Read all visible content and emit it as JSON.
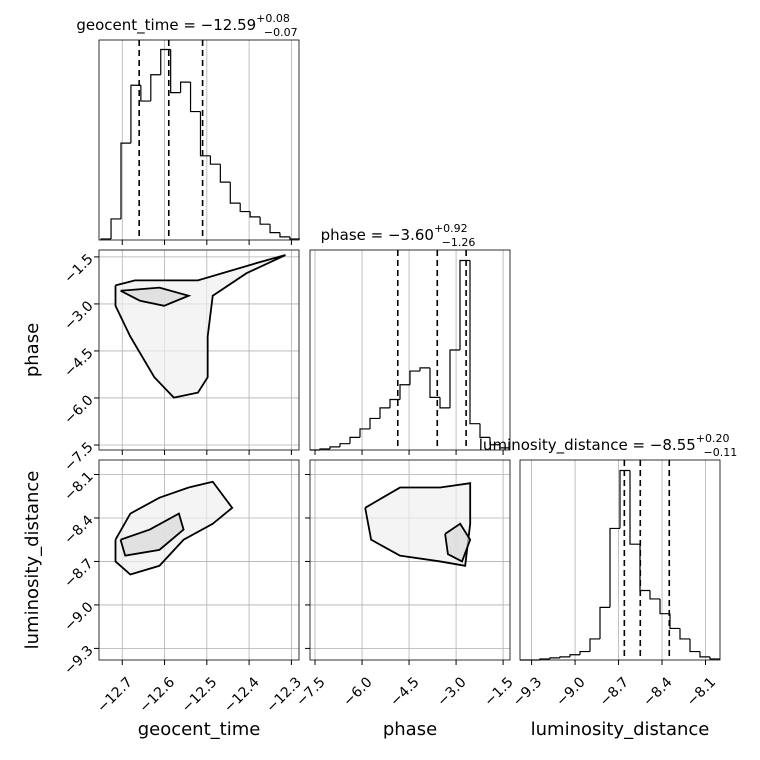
{
  "chart_data": {
    "type": "corner",
    "params": [
      {
        "label": "geocent_time",
        "lim": [
          -12.755,
          -12.282
        ],
        "ticks": [
          {
            "value": -12.7,
            "label": "−12.7"
          },
          {
            "value": -12.6,
            "label": "−12.6"
          },
          {
            "value": -12.5,
            "label": "−12.5"
          },
          {
            "value": -12.4,
            "label": "−12.4"
          },
          {
            "value": -12.3,
            "label": "−12.3"
          }
        ],
        "title": "geocent_time = −12.59",
        "upper": "+0.08",
        "lower": "−0.07",
        "quantiles": [
          -12.66,
          -12.59,
          -12.51
        ],
        "bins": [
          -12.75,
          -12.7265,
          -12.703,
          -12.6795,
          -12.656,
          -12.6325,
          -12.609,
          -12.5855,
          -12.562,
          -12.5385,
          -12.515,
          -12.4915,
          -12.468,
          -12.4445,
          -12.421,
          -12.3975,
          -12.374,
          -12.3505,
          -12.327,
          -12.3035,
          -12.28
        ],
        "counts": [
          1,
          20,
          92,
          147,
          132,
          157,
          181,
          140,
          150,
          122,
          80,
          72,
          55,
          35,
          27,
          22,
          15,
          7,
          3,
          1
        ],
        "count_lim": [
          0,
          190
        ]
      },
      {
        "label": "phase",
        "lim": [
          -7.66,
          -1.28
        ],
        "ticks": [
          {
            "value": -7.5,
            "label": "−7.5"
          },
          {
            "value": -6,
            "label": "−6.0"
          },
          {
            "value": -4.5,
            "label": "−4.5"
          },
          {
            "value": -3,
            "label": "−3.0"
          },
          {
            "value": -1.5,
            "label": "−1.5"
          }
        ],
        "title": "phase = −3.60",
        "upper": "+0.92",
        "lower": "−1.26",
        "quantiles": [
          -4.86,
          -3.6,
          -2.68
        ],
        "bins": [
          -7.66,
          -7.341,
          -7.022,
          -6.703,
          -6.384,
          -6.065,
          -5.746,
          -5.427,
          -5.108,
          -4.789,
          -4.47,
          -4.151,
          -3.832,
          -3.513,
          -3.194,
          -2.875,
          -2.556,
          -2.237,
          -1.918,
          -1.599,
          -1.28
        ],
        "counts": [
          0,
          1,
          3,
          6,
          12,
          20,
          30,
          40,
          48,
          62,
          75,
          78,
          50,
          40,
          95,
          180,
          25,
          12,
          5,
          2
        ],
        "count_lim": [
          0,
          190
        ]
      },
      {
        "label": "luminosity_distance",
        "lim": [
          -9.38,
          -8.0
        ],
        "ticks": [
          {
            "value": -9.3,
            "label": "−9.3"
          },
          {
            "value": -9,
            "label": "−9.0"
          },
          {
            "value": -8.7,
            "label": "−8.7"
          },
          {
            "value": -8.4,
            "label": "−8.4"
          },
          {
            "value": -8.1,
            "label": "−8.1"
          }
        ],
        "title": "luminosity_distance = −8.55",
        "upper": "+0.20",
        "lower": "−0.11",
        "quantiles": [
          -8.66,
          -8.55,
          -8.35
        ],
        "bins": [
          -9.38,
          -9.311,
          -9.242,
          -9.173,
          -9.104,
          -9.035,
          -8.966,
          -8.897,
          -8.828,
          -8.759,
          -8.69,
          -8.621,
          -8.552,
          -8.483,
          -8.414,
          -8.345,
          -8.276,
          -8.207,
          -8.138,
          -8.069,
          -8.0
        ],
        "counts": [
          0,
          0,
          1,
          2,
          3,
          5,
          8,
          20,
          50,
          125,
          180,
          110,
          66,
          58,
          44,
          30,
          20,
          8,
          3,
          1
        ],
        "count_lim": [
          0,
          190
        ]
      }
    ],
    "pairs": [
      {
        "xparam": 0,
        "yparam": 1,
        "contours": [
          {
            "x": [
              -12.716,
              -12.67,
              -12.521,
              -12.383,
              -12.314,
              -12.406,
              -12.486,
              -12.498,
              -12.498,
              -12.521,
              -12.578,
              -12.624,
              -12.681,
              -12.716,
              -12.716
            ],
            "y": [
              -2.41,
              -2.25,
              -2.25,
              -1.7,
              -1.44,
              -2.02,
              -2.74,
              -4.04,
              -5.34,
              -5.83,
              -5.99,
              -5.34,
              -4.04,
              -3.06,
              -2.41
            ]
          },
          {
            "x": [
              -12.704,
              -12.612,
              -12.543,
              -12.601,
              -12.658,
              -12.704
            ],
            "y": [
              -2.58,
              -2.48,
              -2.74,
              -3.06,
              -2.9,
              -2.58
            ]
          }
        ]
      },
      {
        "xparam": 0,
        "yparam": 2,
        "contours": [
          {
            "x": [
              -12.716,
              -12.681,
              -12.612,
              -12.543,
              -12.486,
              -12.44,
              -12.486,
              -12.555,
              -12.612,
              -12.681,
              -12.716,
              -12.716
            ],
            "y": [
              -8.55,
              -8.37,
              -8.26,
              -8.19,
              -8.15,
              -8.33,
              -8.44,
              -8.55,
              -8.73,
              -8.79,
              -8.7,
              -8.55
            ]
          },
          {
            "x": [
              -12.704,
              -12.635,
              -12.566,
              -12.555,
              -12.612,
              -12.693,
              -12.704
            ],
            "y": [
              -8.55,
              -8.48,
              -8.37,
              -8.48,
              -8.62,
              -8.66,
              -8.55
            ]
          }
        ]
      },
      {
        "xparam": 1,
        "yparam": 2,
        "contours": [
          {
            "x": [
              -5.9,
              -4.79,
              -3.51,
              -2.55,
              -2.55,
              -2.71,
              -3.51,
              -4.79,
              -5.71,
              -5.9
            ],
            "y": [
              -8.33,
              -8.19,
              -8.19,
              -8.16,
              -8.44,
              -8.73,
              -8.7,
              -8.66,
              -8.55,
              -8.33
            ]
          },
          {
            "x": [
              -3.35,
              -2.87,
              -2.55,
              -2.81,
              -3.26,
              -3.35
            ],
            "y": [
              -8.51,
              -8.44,
              -8.55,
              -8.7,
              -8.65,
              -8.51
            ]
          }
        ]
      }
    ]
  }
}
